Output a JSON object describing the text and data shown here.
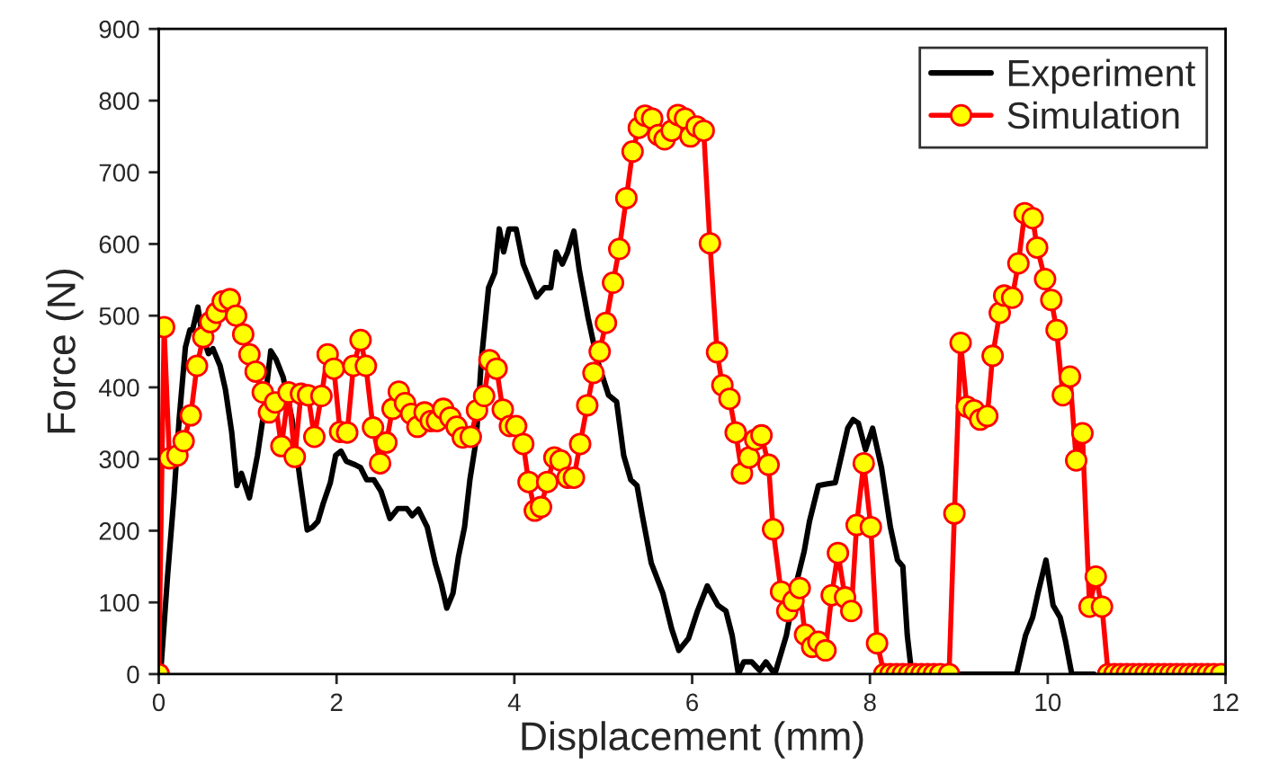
{
  "chart_data": {
    "type": "line",
    "xlabel": "Displacement (mm)",
    "ylabel": "Force (N)",
    "xlim": [
      0,
      12
    ],
    "xticks": [
      0,
      2,
      4,
      6,
      8,
      10,
      12
    ],
    "ylim": [
      0,
      900
    ],
    "yticks": [
      0,
      100,
      200,
      300,
      400,
      500,
      600,
      700,
      800,
      900
    ],
    "grid": false,
    "legend": "top right",
    "series": [
      {
        "name": "Experiment",
        "color": "#000000",
        "marker": "none",
        "x": [
          0.02,
          0.1,
          0.17,
          0.23,
          0.3,
          0.35,
          0.38,
          0.44,
          0.49,
          0.56,
          0.61,
          0.69,
          0.75,
          0.82,
          0.88,
          0.93,
          1.02,
          1.11,
          1.17,
          1.26,
          1.32,
          1.4,
          1.5,
          1.59,
          1.67,
          1.73,
          1.79,
          1.85,
          1.93,
          1.99,
          2.05,
          2.11,
          2.21,
          2.27,
          2.34,
          2.42,
          2.5,
          2.6,
          2.69,
          2.79,
          2.85,
          2.92,
          3.02,
          3.11,
          3.18,
          3.24,
          3.31,
          3.37,
          3.44,
          3.5,
          3.57,
          3.63,
          3.71,
          3.78,
          3.83,
          3.88,
          3.94,
          4.02,
          4.1,
          4.25,
          4.34,
          4.41,
          4.47,
          4.54,
          4.6,
          4.67,
          4.73,
          4.83,
          4.93,
          5.06,
          5.15,
          5.23,
          5.31,
          5.38,
          5.44,
          5.54,
          5.67,
          5.77,
          5.85,
          5.96,
          6.06,
          6.17,
          6.29,
          6.38,
          6.45,
          6.52,
          6.58,
          6.67,
          6.76,
          6.83,
          6.93,
          7.06,
          7.16,
          7.26,
          7.32,
          7.42,
          7.51,
          7.61,
          7.68,
          7.75,
          7.81,
          7.87,
          7.95,
          8.03,
          8.13,
          8.23,
          8.31,
          8.37,
          8.42,
          8.47,
          9.65,
          9.75,
          9.83,
          9.89,
          9.98,
          10.06,
          10.14,
          10.2,
          10.27,
          10.52
        ],
        "values": [
          0,
          138,
          246,
          356,
          456,
          480,
          480,
          512,
          472,
          447,
          454,
          430,
          397,
          338,
          263,
          280,
          246,
          305,
          355,
          451,
          439,
          414,
          355,
          271,
          201,
          205,
          213,
          238,
          267,
          305,
          311,
          297,
          292,
          288,
          271,
          271,
          255,
          217,
          231,
          231,
          221,
          230,
          205,
          155,
          125,
          92,
          113,
          163,
          205,
          271,
          326,
          439,
          539,
          560,
          621,
          589,
          621,
          621,
          572,
          526,
          539,
          539,
          589,
          572,
          589,
          618,
          564,
          497,
          439,
          389,
          380,
          305,
          271,
          263,
          221,
          155,
          113,
          63,
          33,
          50,
          88,
          123,
          96,
          88,
          54,
          0,
          17,
          17,
          5,
          17,
          0,
          54,
          121,
          171,
          213,
          263,
          265,
          267,
          305,
          343,
          355,
          350,
          313,
          343,
          288,
          205,
          159,
          150,
          54,
          0,
          0,
          54,
          79,
          113,
          159,
          96,
          79,
          46,
          0,
          0
        ]
      },
      {
        "name": "Simulation",
        "color": "#ff0000",
        "marker": "circle",
        "x": [
          0,
          0.06,
          0.12,
          0.21,
          0.28,
          0.36,
          0.43,
          0.5,
          0.58,
          0.65,
          0.72,
          0.8,
          0.87,
          0.95,
          1.02,
          1.09,
          1.17,
          1.24,
          1.31,
          1.38,
          1.46,
          1.53,
          1.6,
          1.68,
          1.75,
          1.83,
          1.9,
          1.97,
          2.04,
          2.12,
          2.19,
          2.27,
          2.33,
          2.41,
          2.49,
          2.56,
          2.63,
          2.7,
          2.77,
          2.84,
          2.91,
          2.99,
          3.06,
          3.13,
          3.2,
          3.28,
          3.35,
          3.42,
          3.51,
          3.58,
          3.66,
          3.72,
          3.8,
          3.87,
          3.95,
          4.02,
          4.1,
          4.16,
          4.23,
          4.3,
          4.37,
          4.45,
          4.52,
          4.6,
          4.67,
          4.74,
          4.82,
          4.89,
          4.96,
          5.03,
          5.11,
          5.18,
          5.26,
          5.33,
          5.4,
          5.47,
          5.55,
          5.62,
          5.69,
          5.77,
          5.84,
          5.92,
          5.98,
          6.05,
          6.13,
          6.2,
          6.28,
          6.34,
          6.42,
          6.49,
          6.56,
          6.64,
          6.71,
          6.78,
          6.86,
          6.91,
          7.0,
          7.07,
          7.14,
          7.21,
          7.27,
          7.35,
          7.42,
          7.5,
          7.57,
          7.64,
          7.72,
          7.79,
          7.85,
          7.93,
          8.01,
          8.08,
          8.16,
          8.23,
          8.3,
          8.37,
          8.44,
          8.51,
          8.58,
          8.65,
          8.72,
          8.79,
          8.89,
          8.95,
          9.02,
          9.09,
          9.17,
          9.24,
          9.32,
          9.38,
          9.46,
          9.51,
          9.6,
          9.67,
          9.74,
          9.83,
          9.88,
          9.97,
          10.04,
          10.1,
          10.17,
          10.25,
          10.32,
          10.39,
          10.47,
          10.54,
          10.61,
          10.68,
          10.75,
          10.82,
          10.89,
          10.96,
          11.03,
          11.1,
          11.17,
          11.24,
          11.31,
          11.38,
          11.45,
          11.52,
          11.59,
          11.66,
          11.73,
          11.8,
          11.87,
          11.95
        ],
        "values": [
          0,
          484,
          301,
          305,
          325,
          361,
          430,
          470,
          491,
          504,
          520,
          523,
          500,
          474,
          446,
          422,
          393,
          365,
          379,
          318,
          393,
          303,
          391,
          389,
          331,
          388,
          446,
          426,
          338,
          337,
          430,
          466,
          430,
          344,
          294,
          323,
          370,
          394,
          378,
          363,
          345,
          365,
          353,
          353,
          370,
          358,
          345,
          330,
          331,
          368,
          388,
          438,
          426,
          369,
          346,
          346,
          321,
          268,
          228,
          233,
          268,
          302,
          298,
          274,
          274,
          321,
          375,
          420,
          450,
          490,
          546,
          593,
          664,
          729,
          762,
          779,
          775,
          752,
          746,
          758,
          780,
          775,
          750,
          764,
          758,
          601,
          449,
          403,
          384,
          337,
          280,
          302,
          327,
          333,
          292,
          202,
          115,
          88,
          102,
          120,
          55,
          38,
          45,
          33,
          110,
          169,
          107,
          88,
          208,
          294,
          205,
          43,
          0,
          0,
          0,
          0,
          0,
          0,
          0,
          0,
          0,
          0,
          0,
          224,
          462,
          373,
          368,
          355,
          360,
          444,
          504,
          528,
          525,
          573,
          643,
          636,
          595,
          551,
          522,
          480,
          389,
          415,
          298,
          336,
          94,
          136,
          94,
          0,
          0,
          0,
          0,
          0,
          0,
          0,
          0,
          0,
          0,
          0,
          0,
          0,
          0,
          0,
          0,
          0,
          0,
          0
        ]
      }
    ]
  }
}
